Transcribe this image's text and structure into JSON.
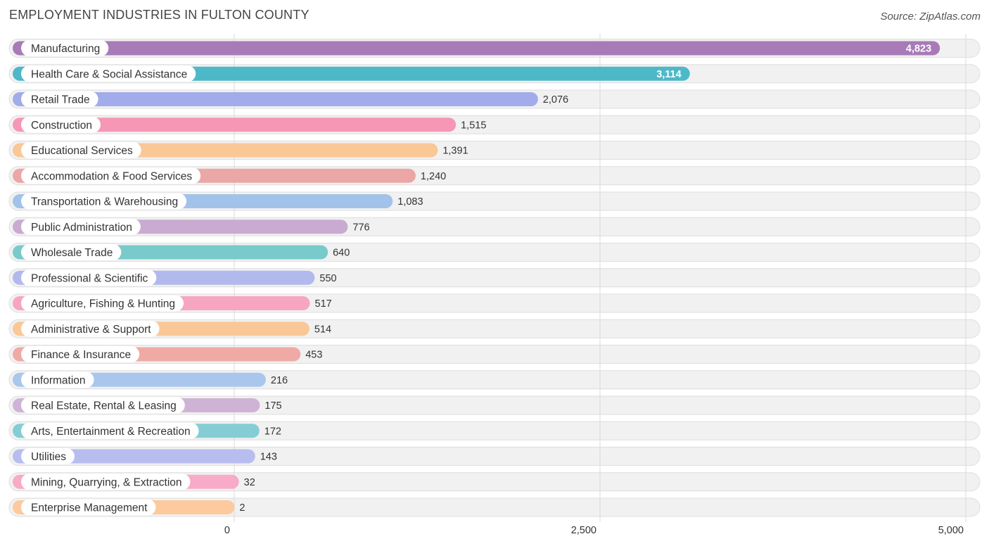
{
  "chart_data": {
    "type": "bar",
    "orientation": "horizontal",
    "title": "EMPLOYMENT INDUSTRIES IN FULTON COUNTY",
    "source": "Source: ZipAtlas.com",
    "xlim": [
      0,
      5000
    ],
    "ticks": [
      0,
      2500,
      5000
    ],
    "tick_labels": [
      "0",
      "2,500",
      "5,000"
    ],
    "categories": [
      "Manufacturing",
      "Health Care & Social Assistance",
      "Retail Trade",
      "Construction",
      "Educational Services",
      "Accommodation & Food Services",
      "Transportation & Warehousing",
      "Public Administration",
      "Wholesale Trade",
      "Professional & Scientific",
      "Agriculture, Fishing & Hunting",
      "Administrative & Support",
      "Finance & Insurance",
      "Information",
      "Real Estate, Rental & Leasing",
      "Arts, Entertainment & Recreation",
      "Utilities",
      "Mining, Quarrying, & Extraction",
      "Enterprise Management"
    ],
    "values": [
      4823,
      3114,
      2076,
      1515,
      1391,
      1240,
      1083,
      776,
      640,
      550,
      517,
      514,
      453,
      216,
      175,
      172,
      143,
      32,
      2
    ],
    "value_labels": [
      "4,823",
      "3,114",
      "2,076",
      "1,515",
      "1,391",
      "1,240",
      "1,083",
      "776",
      "640",
      "550",
      "517",
      "514",
      "453",
      "216",
      "175",
      "172",
      "143",
      "32",
      "2"
    ],
    "colors": [
      "#a87ab8",
      "#4db8c8",
      "#a2acea",
      "#f597b5",
      "#fac797",
      "#eba6a6",
      "#a2c2ea",
      "#c9abd2",
      "#79cacb",
      "#b2b9ec",
      "#f6a6c2",
      "#fac797",
      "#efaaa6",
      "#a9c7ec",
      "#cfb3d5",
      "#84cdd4",
      "#b7bdef",
      "#f8aac6",
      "#fcca9d"
    ]
  }
}
